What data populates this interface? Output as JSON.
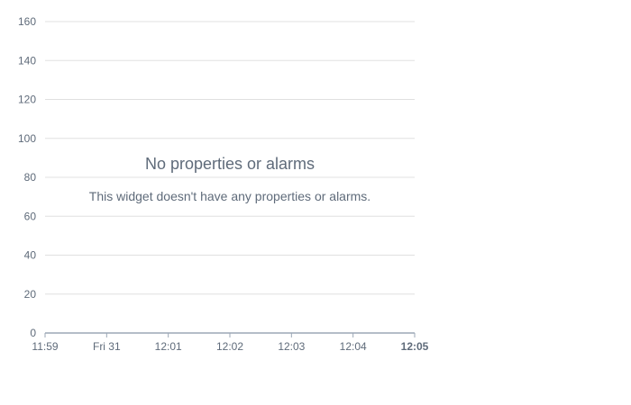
{
  "empty_state": {
    "title": "No properties or alarms",
    "description": "This widget doesn't have any properties or alarms."
  },
  "chart_data": {
    "type": "line",
    "title": "",
    "xlabel": "",
    "ylabel": "",
    "y_ticks": [
      0,
      20,
      40,
      60,
      80,
      100,
      120,
      140,
      160
    ],
    "ylim": [
      0,
      160
    ],
    "x_ticks": [
      "11:59",
      "Fri 31",
      "12:01",
      "12:02",
      "12:03",
      "12:04",
      "12:05"
    ],
    "x_bold_tick": "12:05",
    "grid": true,
    "series": []
  },
  "colors": {
    "grid": "#e0e0e0",
    "axis": "#9ba7b6",
    "text": "#5f6b7a"
  }
}
